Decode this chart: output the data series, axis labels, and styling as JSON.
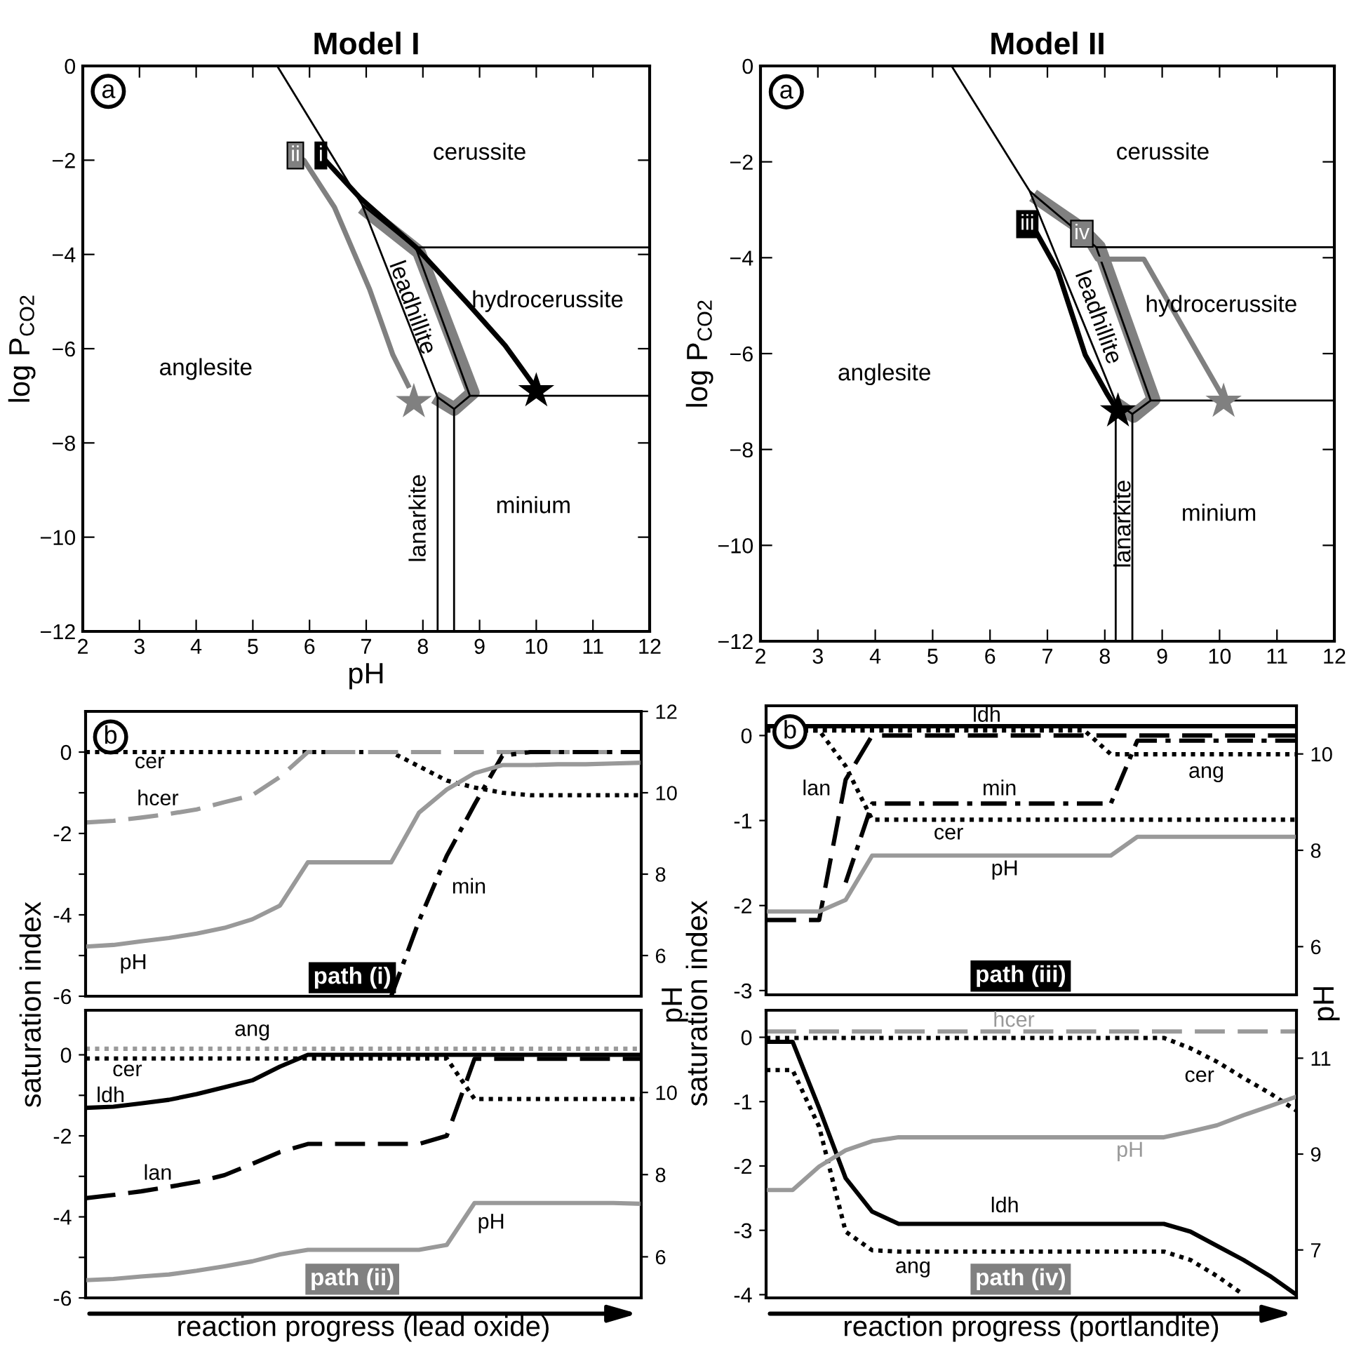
{
  "chart_data": [
    {
      "type": "line",
      "title": "Model I",
      "xlabel": "pH",
      "ylabel": "log P$_{CO2}$",
      "xlim": [
        2,
        12
      ],
      "ylim": [
        -12,
        0
      ],
      "xticks": [
        2,
        3,
        4,
        5,
        6,
        7,
        8,
        9,
        10,
        11,
        12
      ],
      "yticks": [
        {
          "value": 0,
          "label": "0"
        },
        {
          "value": -2,
          "label": "−2"
        },
        {
          "value": -4,
          "label": "−4"
        },
        {
          "value": -6,
          "label": "−6"
        },
        {
          "value": -8,
          "label": "−8"
        },
        {
          "value": -10,
          "label": "−10"
        },
        {
          "value": -12,
          "label": "−12"
        }
      ],
      "series": [
        {
          "color": "#808080",
          "x": [
            6.93,
            7.93,
            8.88,
            8.55,
            8.21
          ],
          "values": [
            -3.0,
            -3.95,
            -6.93,
            -7.28,
            -7.03
          ]
        },
        {
          "color": "#000000",
          "x": [
            5.43,
            6.93,
            8.26,
            8.26
          ],
          "values": [
            0,
            -2.95,
            -7.03,
            -12
          ]
        },
        {
          "color": "#000000",
          "x": [
            6.93,
            7.88
          ],
          "values": [
            -2.95,
            -3.88
          ]
        },
        {
          "color": "#000000",
          "x": [
            7.88,
            8.83
          ],
          "values": [
            -3.88,
            -7.0
          ]
        },
        {
          "color": "#000000",
          "x": [
            7.88,
            12
          ],
          "values": [
            -3.85,
            -3.85
          ]
        },
        {
          "color": "#000000",
          "x": [
            8.83,
            12
          ],
          "values": [
            -7.0,
            -7.0
          ]
        },
        {
          "color": "#000000",
          "x": [
            8.26,
            8.55,
            8.83
          ],
          "values": [
            -7.03,
            -7.28,
            -7.0
          ]
        },
        {
          "color": "#000000",
          "x": [
            8.55,
            8.55
          ],
          "values": [
            -7.28,
            -12
          ]
        },
        {
          "name": "ii",
          "color": "#808080",
          "x": [
            5.75,
            5.9,
            6.44,
            7.06,
            7.47,
            7.76
          ],
          "values": [
            -1.9,
            -2.0,
            -3.0,
            -4.74,
            -6.13,
            -6.83
          ]
        },
        {
          "name": "i",
          "color": "#000000",
          "x": [
            6.2,
            6.89,
            7.88,
            8.79,
            9.45,
            9.99
          ],
          "values": [
            -1.9,
            -2.8,
            -3.85,
            -5.04,
            -5.93,
            -6.83
          ]
        },
        {
          "type": "scatter",
          "marker": "star",
          "color": "#808080",
          "x": [
            7.84
          ],
          "values": [
            -7.13
          ]
        },
        {
          "type": "scatter",
          "marker": "star",
          "color": "#000000",
          "x": [
            10.0
          ],
          "values": [
            -6.9
          ]
        }
      ],
      "annotations": [
        "a",
        "cerussite",
        "hydrocerussite",
        "anglesite",
        "minium",
        "leadhillite",
        "lanarkite"
      ]
    },
    {
      "type": "line",
      "title": "Model II",
      "ylabel": "log P$_{CO2}$",
      "xlim": [
        2,
        12
      ],
      "ylim": [
        -12,
        0
      ],
      "xticks": [
        2,
        3,
        4,
        5,
        6,
        7,
        8,
        9,
        10,
        11,
        12
      ],
      "yticks": [
        {
          "value": 0,
          "label": "0"
        },
        {
          "value": -2,
          "label": "−2"
        },
        {
          "value": -4,
          "label": "−4"
        },
        {
          "value": -6,
          "label": "−6"
        },
        {
          "value": -8,
          "label": "−8"
        },
        {
          "value": -10,
          "label": "−10"
        },
        {
          "value": -12,
          "label": "−12"
        }
      ],
      "series": [
        {
          "color": "#808080",
          "x": [
            6.75,
            7.6,
            7.9,
            8.85,
            8.5,
            8.2
          ],
          "values": [
            -2.7,
            -3.4,
            -3.78,
            -6.96,
            -7.3,
            -7.05
          ]
        },
        {
          "color": "#000000",
          "x": [
            5.33,
            6.69,
            8.19,
            8.19
          ],
          "values": [
            0,
            -2.61,
            -7.01,
            -12
          ]
        },
        {
          "color": "#000000",
          "x": [
            6.69,
            7.85
          ],
          "values": [
            -2.61,
            -3.78
          ]
        },
        {
          "color": "#000000",
          "x": [
            7.85,
            8.8
          ],
          "values": [
            -3.78,
            -6.98
          ]
        },
        {
          "color": "#000000",
          "x": [
            7.85,
            12
          ],
          "values": [
            -3.78,
            -3.78
          ]
        },
        {
          "color": "#000000",
          "x": [
            8.8,
            12
          ],
          "values": [
            -6.98,
            -6.98
          ]
        },
        {
          "color": "#000000",
          "x": [
            8.19,
            8.48,
            8.8
          ],
          "values": [
            -7.01,
            -7.26,
            -6.98
          ]
        },
        {
          "color": "#000000",
          "x": [
            8.48,
            8.48
          ],
          "values": [
            -7.26,
            -12
          ]
        },
        {
          "name": "iii",
          "color": "#000000",
          "x": [
            6.65,
            6.77,
            7.18,
            7.66,
            8.03,
            8.2
          ],
          "values": [
            -3.3,
            -3.39,
            -4.27,
            -6.03,
            -6.82,
            -7.15
          ]
        },
        {
          "name": "iv",
          "color": "#808080",
          "x": [
            7.6,
            7.87,
            8.68,
            10.07
          ],
          "values": [
            -3.5,
            -4.03,
            -4.03,
            -6.93
          ]
        },
        {
          "type": "scatter",
          "marker": "star",
          "color": "#000000",
          "x": [
            8.23
          ],
          "values": [
            -7.2
          ]
        },
        {
          "type": "scatter",
          "marker": "star",
          "color": "#808080",
          "x": [
            10.07
          ],
          "values": [
            -7.0
          ]
        }
      ],
      "annotations": [
        "a",
        "cerussite",
        "hydrocerussite",
        "anglesite",
        "minium",
        "leadhillite",
        "lanarkite"
      ]
    },
    {
      "type": "line",
      "ylabel": "saturation index",
      "y2label": "pH",
      "tick_labels": "y",
      "categories": [
        null,
        null,
        null,
        null,
        null,
        null,
        null,
        null,
        null,
        null,
        null,
        null,
        null,
        null,
        null,
        null,
        null,
        null,
        null,
        null,
        null
      ],
      "ylim": [
        -6,
        1
      ],
      "yticks": [
        0,
        {
          "value": -1,
          "label": null
        },
        -2,
        {
          "value": -3,
          "label": null
        },
        -4,
        {
          "value": -5,
          "label": null
        },
        -6
      ],
      "y2lim": [
        5,
        12
      ],
      "y2ticks": [
        6,
        8,
        10,
        12
      ],
      "series": [
        {
          "name": "cer",
          "color": "#000000",
          "line_style": "dotted",
          "values": [
            0,
            0,
            0,
            0,
            0,
            0,
            0,
            0,
            0,
            0,
            0,
            0,
            -0.35,
            -0.7,
            -0.87,
            -1.0,
            -1.06,
            -1.06,
            -1.06,
            -1.06,
            -1.06
          ]
        },
        {
          "name": "hcer",
          "color": "#999999",
          "line_style": "dashed",
          "values": [
            -1.73,
            -1.69,
            -1.61,
            -1.52,
            -1.41,
            -1.23,
            -1.06,
            -0.61,
            0,
            0,
            0,
            0,
            0,
            0,
            0,
            0,
            0,
            0,
            0,
            0,
            0
          ]
        },
        {
          "name": "pH",
          "color": "#999999",
          "line_style": "solid",
          "axis": "y2",
          "values": [
            6.22,
            6.26,
            6.35,
            6.43,
            6.54,
            6.68,
            6.89,
            7.23,
            8.29,
            8.29,
            8.29,
            8.29,
            9.51,
            10.08,
            10.48,
            10.68,
            10.68,
            10.7,
            10.7,
            10.72,
            10.74
          ]
        },
        {
          "name": "min",
          "color": "#000000",
          "line_style": "dashdot",
          "values": [
            null,
            null,
            null,
            null,
            null,
            null,
            null,
            null,
            null,
            null,
            null,
            -6.0,
            -4.15,
            -2.55,
            -1.29,
            -0.09,
            0,
            0,
            0,
            0,
            0
          ]
        }
      ],
      "annotations": [
        "b",
        "path (i)"
      ]
    },
    {
      "type": "line",
      "xlabel": "reaction progress (lead oxide)",
      "tick_labels": "y",
      "categories": [
        null,
        null,
        null,
        null,
        null,
        null,
        null,
        null,
        null,
        null,
        null,
        null,
        null,
        null,
        null,
        null,
        null,
        null,
        null,
        null,
        null
      ],
      "ylim": [
        -6,
        1.1
      ],
      "yticks": [
        0,
        {
          "value": -1,
          "label": null
        },
        -2,
        {
          "value": -3,
          "label": null
        },
        -4,
        {
          "value": -5,
          "label": null
        },
        -6
      ],
      "y2lim": [
        5,
        12
      ],
      "y2ticks": [
        6,
        8,
        10
      ],
      "series": [
        {
          "name": "ang",
          "color": "#999999",
          "line_style": "dotted",
          "values": [
            0.15,
            0.15,
            0.15,
            0.15,
            0.15,
            0.15,
            0.15,
            0.15,
            0.15,
            0.15,
            0.15,
            0.15,
            0.15,
            0.15,
            0.15,
            0.15,
            0.15,
            0.15,
            0.15,
            0.15,
            0.15
          ]
        },
        {
          "name": "cer",
          "color": "#000000",
          "line_style": "dotted",
          "values": [
            -0.09,
            -0.09,
            -0.09,
            -0.09,
            -0.09,
            -0.09,
            -0.09,
            -0.09,
            -0.09,
            -0.09,
            -0.09,
            -0.09,
            -0.09,
            -0.09,
            -1.09,
            -1.09,
            -1.09,
            -1.09,
            -1.09,
            -1.09,
            -1.09
          ]
        },
        {
          "name": "ldh",
          "color": "#000000",
          "line_style": "solid",
          "values": [
            -1.31,
            -1.28,
            -1.2,
            -1.11,
            -0.97,
            -0.8,
            -0.63,
            -0.29,
            0,
            0,
            0,
            0,
            0,
            0,
            0,
            0,
            0,
            0,
            0,
            0,
            0
          ]
        },
        {
          "name": "lan",
          "color": "#000000",
          "line_style": "dashed",
          "values": [
            -3.54,
            -3.46,
            -3.37,
            -3.26,
            -3.14,
            -2.97,
            -2.69,
            -2.4,
            -2.2,
            -2.2,
            -2.2,
            -2.2,
            -2.2,
            -2.0,
            -0.1,
            -0.1,
            -0.1,
            -0.1,
            -0.1,
            -0.1,
            -0.1
          ]
        },
        {
          "name": "pH",
          "color": "#999999",
          "line_style": "solid",
          "axis": "y2",
          "values": [
            5.43,
            5.46,
            5.52,
            5.57,
            5.66,
            5.77,
            5.89,
            6.06,
            6.17,
            6.17,
            6.17,
            6.17,
            6.17,
            6.29,
            7.31,
            7.31,
            7.31,
            7.31,
            7.31,
            7.31,
            7.29
          ]
        }
      ],
      "annotations": [
        "path (ii)"
      ]
    },
    {
      "type": "line",
      "ylabel": "saturation index",
      "y2label": "pH",
      "tick_labels": "y",
      "categories": [
        null,
        null,
        null,
        null,
        null,
        null,
        null,
        null,
        null,
        null,
        null,
        null,
        null,
        null,
        null,
        null,
        null,
        null,
        null,
        null,
        null
      ],
      "ylim": [
        -3.05,
        0.35
      ],
      "yticks": [
        0,
        -1,
        -2,
        -3
      ],
      "y2lim": [
        5,
        11
      ],
      "y2ticks": [
        6,
        8,
        10
      ],
      "series": [
        {
          "name": "ldh",
          "color": "#000000",
          "line_style": "solid",
          "values": [
            0.11,
            0.11,
            0.11,
            0.11,
            0.11,
            0.11,
            0.11,
            0.11,
            0.11,
            0.11,
            0.11,
            0.11,
            0.11,
            0.11,
            0.11,
            0.11,
            0.11,
            0.11,
            0.11,
            0.11,
            0.11
          ]
        },
        {
          "name": "ang",
          "color": "#000000",
          "line_style": "dotted",
          "values": [
            0.06,
            0.06,
            0.06,
            0.06,
            0.06,
            0.06,
            0.06,
            0.06,
            0.06,
            0.06,
            0.06,
            0.06,
            0.06,
            -0.22,
            -0.22,
            -0.22,
            -0.22,
            -0.22,
            -0.22,
            -0.22,
            -0.22
          ]
        },
        {
          "name": "lan",
          "color": "#000000",
          "line_style": "dashed",
          "values": [
            -2.17,
            -2.17,
            -2.17,
            -0.52,
            0,
            0,
            0,
            0,
            0,
            0,
            0,
            0,
            0,
            0,
            0,
            0,
            0,
            0,
            0,
            0,
            0
          ]
        },
        {
          "name": "min",
          "color": "#000000",
          "line_style": "dashdot",
          "values": [
            null,
            null,
            null,
            -1.73,
            -0.8,
            -0.8,
            -0.8,
            -0.8,
            -0.8,
            -0.8,
            -0.8,
            -0.8,
            -0.8,
            -0.8,
            -0.06,
            -0.06,
            -0.06,
            -0.06,
            -0.06,
            -0.06,
            -0.06
          ]
        },
        {
          "name": "cer",
          "color": "#000000",
          "line_style": "dotted",
          "values": [
            0.06,
            0.06,
            0.06,
            -0.36,
            -0.99,
            -0.99,
            -0.99,
            -0.99,
            -0.99,
            -0.99,
            -0.99,
            -0.99,
            -0.99,
            -0.99,
            -0.99,
            -0.99,
            -0.99,
            -0.99,
            -0.99,
            -0.99,
            -0.99
          ]
        },
        {
          "name": "pH",
          "color": "#999999",
          "line_style": "solid",
          "axis": "y2",
          "values": [
            6.73,
            6.73,
            6.73,
            6.97,
            7.89,
            7.89,
            7.89,
            7.89,
            7.89,
            7.89,
            7.89,
            7.89,
            7.89,
            7.89,
            8.28,
            8.28,
            8.28,
            8.28,
            8.28,
            8.28,
            8.28
          ]
        }
      ],
      "annotations": [
        "b",
        "path (iii)"
      ]
    },
    {
      "type": "line",
      "xlabel": "reaction progress (portlandite)",
      "tick_labels": "y",
      "categories": [
        null,
        null,
        null,
        null,
        null,
        null,
        null,
        null,
        null,
        null,
        null,
        null,
        null,
        null,
        null,
        null,
        null,
        null,
        null,
        null,
        null
      ],
      "ylim": [
        -4.05,
        0.42
      ],
      "yticks": [
        0,
        -1,
        -2,
        -3,
        -4
      ],
      "y2lim": [
        6,
        12
      ],
      "y2ticks": [
        7,
        9,
        11
      ],
      "series": [
        {
          "name": "hcer",
          "color": "#999999",
          "line_style": "dashed",
          "values": [
            0.09,
            0.09,
            0.09,
            0.09,
            0.09,
            0.09,
            0.09,
            0.09,
            0.09,
            0.09,
            0.09,
            0.09,
            0.09,
            0.09,
            0.09,
            0.09,
            0.09,
            0.09,
            0.09,
            0.09,
            0.09
          ]
        },
        {
          "name": "cer",
          "color": "#000000",
          "line_style": "dotted",
          "values": [
            -0.01,
            -0.01,
            -0.01,
            -0.01,
            -0.01,
            -0.01,
            -0.01,
            -0.01,
            -0.01,
            -0.01,
            -0.01,
            -0.01,
            -0.01,
            -0.01,
            -0.01,
            -0.01,
            -0.17,
            -0.38,
            -0.63,
            -0.87,
            -1.14
          ]
        },
        {
          "name": "pH",
          "color": "#999999",
          "line_style": "solid",
          "axis": "y2",
          "values": [
            8.25,
            8.25,
            8.74,
            9.08,
            9.27,
            9.35,
            9.35,
            9.35,
            9.35,
            9.35,
            9.35,
            9.35,
            9.35,
            9.35,
            9.35,
            9.35,
            9.47,
            9.6,
            9.81,
            10.0,
            10.2
          ]
        },
        {
          "name": "ldh",
          "color": "#000000",
          "line_style": "solid",
          "values": [
            -0.07,
            -0.07,
            -1.1,
            -2.19,
            -2.71,
            -2.9,
            -2.9,
            -2.9,
            -2.9,
            -2.9,
            -2.9,
            -2.9,
            -2.9,
            -2.9,
            -2.9,
            -2.9,
            -3.02,
            -3.24,
            -3.46,
            -3.71,
            -4.0
          ]
        },
        {
          "name": "ang",
          "color": "#000000",
          "line_style": "dotted",
          "values": [
            -0.51,
            -0.51,
            -1.39,
            -3.02,
            -3.31,
            -3.33,
            -3.33,
            -3.33,
            -3.33,
            -3.33,
            -3.33,
            -3.33,
            -3.33,
            -3.33,
            -3.33,
            -3.33,
            -3.46,
            -3.71,
            -4.0,
            null,
            null
          ]
        }
      ],
      "annotations": [
        "path (iv)"
      ]
    }
  ]
}
